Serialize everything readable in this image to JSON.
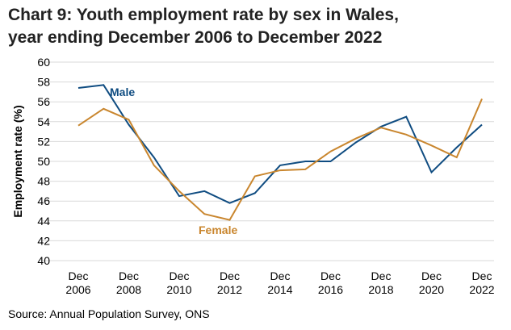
{
  "chart_data": {
    "type": "line",
    "title_line1": "Chart 9: Youth employment rate by sex in Wales,",
    "title_line2": "year ending December 2006 to December 2022",
    "ylabel": "Employment rate (%)",
    "xlabel": "",
    "ylim": [
      40,
      60
    ],
    "yticks": [
      40,
      42,
      44,
      46,
      48,
      50,
      52,
      54,
      56,
      58,
      60
    ],
    "x": [
      2006,
      2007,
      2008,
      2009,
      2010,
      2011,
      2012,
      2013,
      2014,
      2015,
      2016,
      2017,
      2018,
      2019,
      2020,
      2021,
      2022
    ],
    "xtick_labels": [
      [
        "Dec",
        "2006"
      ],
      [
        "Dec",
        "2008"
      ],
      [
        "Dec",
        "2010"
      ],
      [
        "Dec",
        "2012"
      ],
      [
        "Dec",
        "2014"
      ],
      [
        "Dec",
        "2016"
      ],
      [
        "Dec",
        "2018"
      ],
      [
        "Dec",
        "2020"
      ],
      [
        "Dec",
        "2022"
      ]
    ],
    "grid": true,
    "series": [
      {
        "name": "Male",
        "color": "#0f4c81",
        "values": [
          57.4,
          57.7,
          53.7,
          50.4,
          46.5,
          47.0,
          45.8,
          46.8,
          49.6,
          50.0,
          50.0,
          51.9,
          53.5,
          54.5,
          48.9,
          51.4,
          53.7
        ]
      },
      {
        "name": "Female",
        "color": "#c9862e",
        "values": [
          53.6,
          55.3,
          54.2,
          49.6,
          47.0,
          44.7,
          44.1,
          48.5,
          49.1,
          49.2,
          51.0,
          52.3,
          53.4,
          52.7,
          51.6,
          50.4,
          56.3
        ]
      }
    ],
    "source": "Source: Annual Population Survey, ONS"
  }
}
